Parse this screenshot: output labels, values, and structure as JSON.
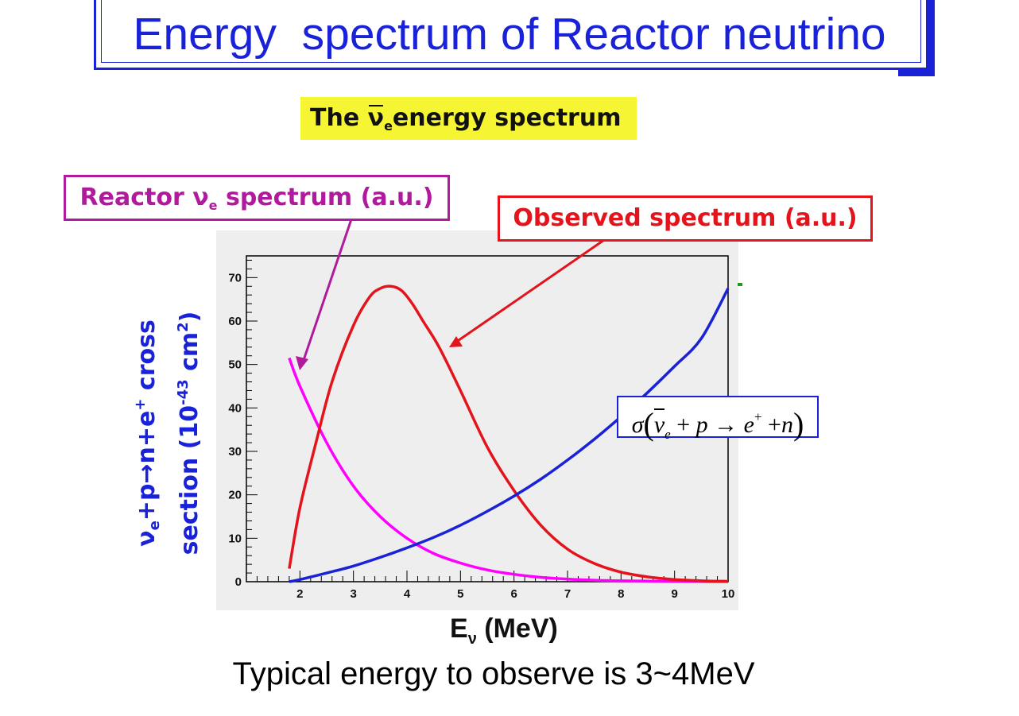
{
  "title": "Energy  spectrum of Reactor neutrino",
  "subtitle": {
    "pre": "The ",
    "nu": "ν",
    "sub": "e",
    "post": "energy spectrum"
  },
  "callouts": {
    "reactor": {
      "pre": "Reactor ",
      "nu": "ν",
      "sub": "e",
      "post": " spectrum (a.u.)"
    },
    "observed": "Observed spectrum (a.u.)"
  },
  "formula": {
    "sigma": "σ",
    "nu": "ν",
    "e": "e",
    "plus1": "+",
    "p": "p",
    "arrow": "→",
    "epos": "e",
    "sup": "+",
    "plus2": "+",
    "n": "n"
  },
  "caption": "Typical energy to observe is 3~4MeV",
  "colors": {
    "title": "#1a22d8",
    "reactor": "#ff00ff",
    "observed": "#e4141c",
    "cross_section": "#1a22d8",
    "plot_bg": "#eeeeee"
  },
  "chart_data": {
    "type": "line",
    "xlabel": {
      "pre": "E",
      "sub": "ν",
      "post": " (MeV)"
    },
    "ylabel": {
      "line1": {
        "a": "ν",
        "b": "e",
        "c": "+p→n+e",
        "d": "+",
        "e": " cross"
      },
      "line2": {
        "a": "section (10",
        "b": "-43",
        "c": " cm",
        "d": "2",
        "e": ")"
      }
    },
    "xlim": [
      1.0,
      10.0
    ],
    "ylim": [
      0,
      75
    ],
    "x_ticks": [
      2,
      3,
      4,
      5,
      6,
      7,
      8,
      9,
      10
    ],
    "y_ticks": [
      0,
      10,
      20,
      30,
      40,
      50,
      60,
      70
    ],
    "x_tick_labels": [
      "2",
      "3",
      "4",
      "5",
      "6",
      "7",
      "8",
      "9",
      "10"
    ],
    "y_tick_labels": [
      "0",
      "10",
      "20",
      "30",
      "40",
      "50",
      "60",
      "70"
    ],
    "grid": false,
    "series": [
      {
        "x": [
          1.8,
          2.0,
          2.5,
          3.0,
          3.5,
          4.0,
          4.5,
          5.0,
          5.5,
          6.0,
          6.5,
          7.0,
          7.5,
          8.0,
          8.5,
          9.0,
          9.5,
          10.0
        ],
        "values": [
          51.5,
          45,
          32,
          22,
          15,
          10,
          6.5,
          4.3,
          2.7,
          1.7,
          1.0,
          0.6,
          0.35,
          0.2,
          0.12,
          0.07,
          0.04,
          0.02
        ]
      },
      {
        "x": [
          1.8,
          2.0,
          2.3,
          2.6,
          3.0,
          3.3,
          3.5,
          3.7,
          3.9,
          4.1,
          4.3,
          4.6,
          5.0,
          5.5,
          6.0,
          6.5,
          7.0,
          7.5,
          8.0,
          8.5,
          9.0,
          9.5,
          10.0
        ],
        "values": [
          3,
          17,
          32,
          46,
          59,
          65.5,
          67.5,
          68,
          67,
          64,
          60,
          54,
          44,
          31,
          21,
          13,
          7.5,
          4.2,
          2.2,
          1.1,
          0.5,
          0.2,
          0.1
        ]
      },
      {
        "x": [
          1.8,
          2.0,
          2.5,
          3.0,
          3.5,
          4.0,
          4.5,
          5.0,
          5.5,
          6.0,
          6.5,
          7.0,
          7.5,
          8.0,
          8.5,
          9.0,
          9.5,
          10.0
        ],
        "values": [
          0,
          0.5,
          2.0,
          3.6,
          5.6,
          7.8,
          10.2,
          13.0,
          16.2,
          19.7,
          23.6,
          28.0,
          32.8,
          38.0,
          43.6,
          49.6,
          56.0,
          67.5
        ]
      }
    ]
  }
}
